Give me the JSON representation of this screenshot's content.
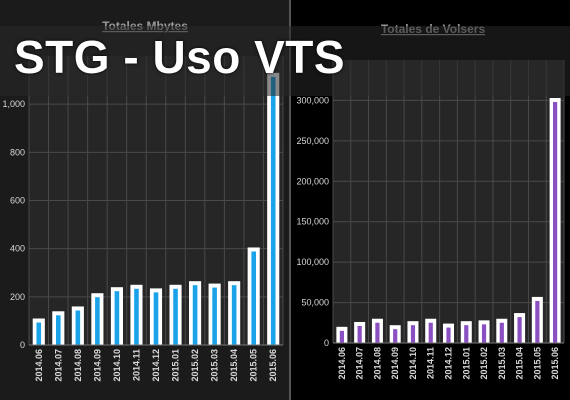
{
  "banner": {
    "title": "STG - Uso VTS"
  },
  "colors": {
    "left_bar": "#1aa3e8",
    "right_bar": "#8a4fc0",
    "bar_frame": "#ffffff"
  },
  "chart_data": [
    {
      "type": "bar",
      "title": "Totales Mbytes",
      "xlabel": "",
      "ylabel": "",
      "categories": [
        "2014.06",
        "2014.07",
        "2014.08",
        "2014.09",
        "2014.10",
        "2014.11",
        "2014.12",
        "2015.01",
        "2015.02",
        "2015.03",
        "2015.04",
        "2015.05",
        "2015.06"
      ],
      "values": [
        110,
        140,
        160,
        215,
        240,
        250,
        235,
        250,
        265,
        255,
        265,
        405,
        1130
      ],
      "ylim": [
        0,
        1200
      ],
      "yticks": [
        0,
        200,
        400,
        600,
        800,
        1000
      ],
      "ytick_labels": [
        "0",
        "200",
        "400",
        "600",
        "800",
        "1,000"
      ],
      "grid": true,
      "legend": "none"
    },
    {
      "type": "bar",
      "title": "Totales de Volsers",
      "xlabel": "",
      "ylabel": "",
      "categories": [
        "2014.06",
        "2014.07",
        "2014.08",
        "2014.09",
        "2014.10",
        "2014.11",
        "2014.12",
        "2015.01",
        "2015.02",
        "2015.03",
        "2015.04",
        "2015.05",
        "2015.06"
      ],
      "values": [
        20000,
        26000,
        30000,
        22000,
        27000,
        30000,
        24000,
        27000,
        28000,
        30000,
        37000,
        57000,
        303000
      ],
      "ylim": [
        0,
        350000
      ],
      "yticks": [
        0,
        50000,
        100000,
        150000,
        200000,
        250000,
        300000
      ],
      "ytick_labels": [
        "0",
        "50,000",
        "100,000",
        "150,000",
        "200,000",
        "250,000",
        "300,000"
      ],
      "grid": true,
      "legend": "none"
    }
  ]
}
